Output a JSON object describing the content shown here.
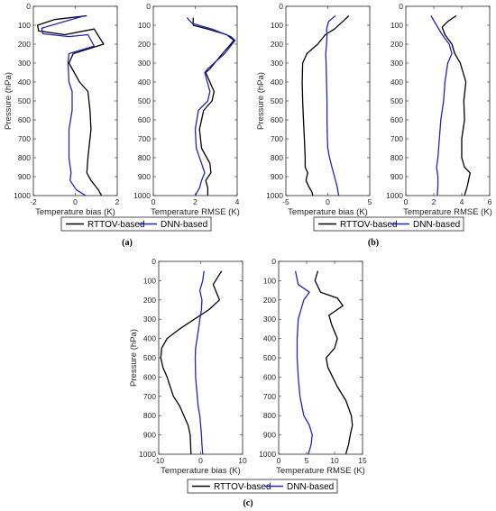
{
  "colors": {
    "rttov": "#000000",
    "dnn": "#2222cc",
    "axis": "#262626"
  },
  "chart_data": [
    {
      "type": "line",
      "panel": "a",
      "xlabel": "Temperature bias (K)",
      "ylabel": "Pressure (hPa)",
      "xlim": [
        -2,
        2
      ],
      "xticks": [
        -2,
        0,
        2
      ],
      "xtick_labels": [
        "-2",
        "0",
        "2"
      ],
      "ylim": [
        0,
        1000
      ],
      "yticks": [
        0,
        100,
        200,
        300,
        400,
        500,
        600,
        700,
        800,
        900,
        1000
      ],
      "y_inverted": true,
      "series": [
        {
          "name": "RTTOV-based",
          "color": "#000000",
          "x": [
            0.55,
            -1.0,
            -1.8,
            -1.75,
            -0.5,
            0.9,
            1.35,
            -0.1,
            -0.3,
            0.2,
            0.6,
            0.7,
            0.75,
            0.6,
            0.55,
            0.75,
            1.1,
            1.25
          ],
          "y": [
            50,
            70,
            100,
            130,
            150,
            120,
            200,
            250,
            300,
            400,
            450,
            550,
            650,
            800,
            880,
            920,
            970,
            1000
          ]
        },
        {
          "name": "DNN-based",
          "color": "#2222cc",
          "x": [
            0.45,
            -0.5,
            -1.6,
            -1.55,
            -0.3,
            0.6,
            0.9,
            -0.3,
            -0.35,
            -0.3,
            -0.15,
            -0.15,
            -0.3,
            -0.3,
            -0.2,
            -0.25,
            0.05,
            0.5
          ],
          "y": [
            50,
            80,
            115,
            145,
            160,
            150,
            210,
            250,
            300,
            400,
            450,
            550,
            650,
            800,
            880,
            920,
            970,
            1000
          ]
        }
      ]
    },
    {
      "type": "line",
      "panel": "a",
      "xlabel": "Temperature RMSE (K)",
      "ylabel": "",
      "xlim": [
        0,
        4
      ],
      "xticks": [
        0,
        2,
        4
      ],
      "xtick_labels": [
        "0",
        "2",
        "4"
      ],
      "ylim": [
        0,
        1000
      ],
      "yticks": [
        0,
        100,
        200,
        300,
        400,
        500,
        600,
        700,
        800,
        900,
        1000
      ],
      "y_inverted": true,
      "series": [
        {
          "name": "RTTOV-based",
          "color": "#000000",
          "x": [
            1.9,
            1.9,
            2.6,
            3.5,
            3.85,
            3.3,
            2.7,
            2.5,
            2.9,
            2.8,
            2.4,
            2.2,
            2.3,
            2.7,
            2.75,
            2.5,
            2.6,
            2.6
          ],
          "y": [
            60,
            100,
            120,
            150,
            180,
            250,
            330,
            350,
            450,
            500,
            550,
            650,
            750,
            830,
            880,
            920,
            960,
            1000
          ]
        },
        {
          "name": "DNN-based",
          "color": "#2222cc",
          "x": [
            1.6,
            1.85,
            2.8,
            3.7,
            3.9,
            3.4,
            2.6,
            2.45,
            2.7,
            2.6,
            2.15,
            2.0,
            2.05,
            2.3,
            2.45,
            2.3,
            2.2,
            2.0
          ],
          "y": [
            60,
            90,
            120,
            160,
            180,
            250,
            330,
            350,
            450,
            500,
            550,
            650,
            750,
            830,
            880,
            920,
            960,
            1000
          ]
        }
      ]
    },
    {
      "type": "line",
      "panel": "b",
      "xlabel": "Temperature bias (K)",
      "ylabel": "Pressure (hPa)",
      "xlim": [
        -5,
        5
      ],
      "xticks": [
        -5,
        0,
        5
      ],
      "xtick_labels": [
        "-5",
        "0",
        "5"
      ],
      "ylim": [
        0,
        1000
      ],
      "yticks": [
        0,
        100,
        200,
        300,
        400,
        500,
        600,
        700,
        800,
        900,
        1000
      ],
      "y_inverted": true,
      "series": [
        {
          "name": "RTTOV-based",
          "color": "#000000",
          "x": [
            2.5,
            1.8,
            0.8,
            -0.3,
            -1.2,
            -2.5,
            -3.0,
            -3.05,
            -3.0,
            -2.9,
            -2.8,
            -2.7,
            -2.7,
            -2.4,
            -2.6,
            -2.3,
            -1.9,
            -1.8
          ],
          "y": [
            50,
            80,
            120,
            150,
            200,
            250,
            300,
            400,
            500,
            600,
            700,
            800,
            850,
            880,
            920,
            950,
            980,
            1000
          ]
        },
        {
          "name": "DNN-based",
          "color": "#2222cc",
          "x": [
            0.9,
            0.1,
            -0.15,
            -0.1,
            -0.15,
            -0.25,
            -0.2,
            -0.15,
            -0.1,
            -0.1,
            -0.05,
            0.0,
            0.2,
            0.5,
            0.8,
            1.1,
            1.3
          ],
          "y": [
            50,
            80,
            120,
            150,
            200,
            250,
            300,
            400,
            500,
            600,
            700,
            750,
            800,
            850,
            900,
            950,
            1000
          ]
        }
      ]
    },
    {
      "type": "line",
      "panel": "b",
      "xlabel": "Temperature RMSE (K)",
      "ylabel": "",
      "xlim": [
        0,
        6
      ],
      "xticks": [
        0,
        2,
        4,
        6
      ],
      "xtick_labels": [
        "0",
        "2",
        "4",
        "6"
      ],
      "ylim": [
        0,
        1000
      ],
      "yticks": [
        0,
        100,
        200,
        300,
        400,
        500,
        600,
        700,
        800,
        900,
        1000
      ],
      "y_inverted": true,
      "series": [
        {
          "name": "RTTOV-based",
          "color": "#000000",
          "x": [
            3.6,
            3.0,
            2.6,
            2.8,
            3.3,
            3.5,
            3.9,
            4.3,
            4.15,
            4.2,
            4.0,
            4.0,
            4.2,
            4.6,
            4.4,
            4.2
          ],
          "y": [
            50,
            80,
            110,
            150,
            200,
            250,
            300,
            400,
            500,
            600,
            700,
            800,
            850,
            880,
            950,
            1000
          ]
        },
        {
          "name": "DNN-based",
          "color": "#2222cc",
          "x": [
            1.8,
            2.2,
            2.6,
            3.1,
            3.3,
            3.0,
            2.8,
            2.7,
            2.5,
            2.4,
            2.3,
            2.2,
            2.3,
            2.3,
            2.25
          ],
          "y": [
            50,
            100,
            150,
            200,
            250,
            300,
            400,
            500,
            600,
            700,
            800,
            850,
            900,
            950,
            1000
          ]
        }
      ]
    },
    {
      "type": "line",
      "panel": "c",
      "xlabel": "Temperature bias (K)",
      "ylabel": "Pressure (hPa)",
      "xlim": [
        -10,
        10
      ],
      "xticks": [
        -10,
        0,
        10
      ],
      "xtick_labels": [
        "-10",
        "0",
        "10"
      ],
      "ylim": [
        0,
        1000
      ],
      "yticks": [
        0,
        100,
        200,
        300,
        400,
        500,
        600,
        700,
        800,
        900,
        1000
      ],
      "y_inverted": true,
      "series": [
        {
          "name": "RTTOV-based",
          "color": "#000000",
          "x": [
            5.0,
            3.0,
            4.5,
            2.0,
            -1.5,
            -5.0,
            -8.0,
            -9.3,
            -9.5,
            -9.0,
            -8.0,
            -6.5,
            -5.0,
            -4.0,
            -3.0,
            -2.5,
            -2.3
          ],
          "y": [
            50,
            120,
            200,
            250,
            300,
            350,
            400,
            450,
            500,
            550,
            600,
            700,
            750,
            800,
            850,
            900,
            1000
          ]
        },
        {
          "name": "DNN-based",
          "color": "#2222cc",
          "x": [
            0.8,
            0.5,
            -0.2,
            0.3,
            0.2,
            -0.2,
            -0.5,
            -1.2,
            -1.3,
            -1.2,
            -1.0,
            -0.6,
            -0.2,
            0.2,
            0.3,
            0.5
          ],
          "y": [
            50,
            100,
            150,
            200,
            250,
            300,
            350,
            450,
            500,
            600,
            650,
            750,
            800,
            900,
            950,
            1000
          ]
        }
      ]
    },
    {
      "type": "line",
      "panel": "c",
      "xlabel": "Temperature RMSE (K)",
      "ylabel": "",
      "xlim": [
        0,
        15
      ],
      "xticks": [
        0,
        5,
        10,
        15
      ],
      "xtick_labels": [
        "0",
        "5",
        "10",
        "15"
      ],
      "ylim": [
        0,
        1000
      ],
      "yticks": [
        0,
        100,
        200,
        300,
        400,
        500,
        600,
        700,
        800,
        900,
        1000
      ],
      "y_inverted": true,
      "series": [
        {
          "name": "RTTOV-based",
          "color": "#000000",
          "x": [
            7.0,
            6.5,
            7.5,
            10.5,
            11.5,
            9.0,
            9.5,
            10.5,
            10.0,
            8.5,
            8.8,
            10.5,
            12.0,
            13.0,
            13.2,
            12.8,
            12.5,
            12.0
          ],
          "y": [
            50,
            100,
            160,
            190,
            230,
            280,
            330,
            400,
            450,
            500,
            550,
            650,
            720,
            800,
            850,
            900,
            950,
            1000
          ]
        },
        {
          "name": "DNN-based",
          "color": "#2222cc",
          "x": [
            3.0,
            3.5,
            5.5,
            4.5,
            4.0,
            3.5,
            3.3,
            3.3,
            3.5,
            3.8,
            4.5,
            5.5,
            6.0,
            5.8,
            5.3
          ],
          "y": [
            50,
            120,
            160,
            200,
            250,
            300,
            400,
            500,
            600,
            700,
            800,
            850,
            900,
            950,
            1000
          ]
        }
      ]
    }
  ],
  "legends": [
    {
      "items": [
        "RTTOV-based",
        "DNN-based"
      ]
    },
    {
      "items": [
        "RTTOV-based",
        "DNN-based"
      ]
    },
    {
      "items": [
        "RTTOV-based",
        "DNN-based"
      ]
    }
  ],
  "panel_labels": [
    "(a)",
    "(b)",
    "(c)"
  ]
}
